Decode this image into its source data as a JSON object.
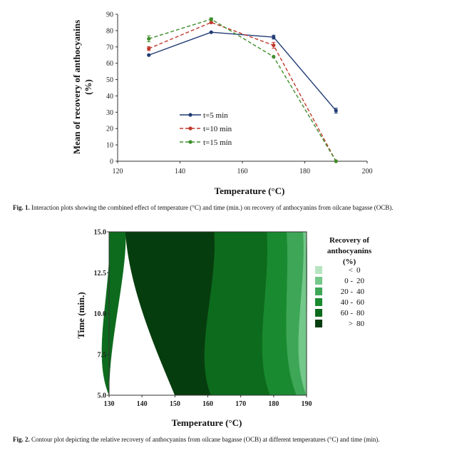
{
  "figure1": {
    "caption_label": "Fig. 1.",
    "caption_text": "Interaction plots showing the combined effect of temperature (°C) and time (min.) on recovery of anthocyanins from oilcane bagasse (OCB).",
    "chart_data": {
      "type": "line",
      "xlabel": "Temperature (°C)",
      "ylabel_line1": "Mean of recovery of anthocyanins",
      "ylabel_line2": "(%)",
      "xlim": [
        120,
        200
      ],
      "ylim": [
        0,
        90
      ],
      "x_ticks": [
        "120",
        "140",
        "160",
        "180",
        "200"
      ],
      "y_ticks": [
        "0",
        "10",
        "20",
        "30",
        "40",
        "50",
        "60",
        "70",
        "80",
        "90"
      ],
      "grid": false,
      "legend_position": "center",
      "x": [
        130,
        150,
        170,
        190
      ],
      "series": [
        {
          "name": "t=5 min",
          "color": "#1f3a73",
          "dash": "solid",
          "values": [
            65,
            79,
            76,
            31
          ],
          "errors": [
            0,
            0,
            1.2,
            1.5
          ]
        },
        {
          "name": "t=10 min",
          "color": "#c0392b",
          "dash": "dashed",
          "values": [
            69,
            85,
            71,
            0
          ],
          "errors": [
            1.2,
            0,
            1.8,
            0
          ]
        },
        {
          "name": "t=15 min",
          "color": "#3e8e2b",
          "dash": "dashed",
          "values": [
            75,
            87,
            64,
            0
          ],
          "errors": [
            1.8,
            0.8,
            0,
            0
          ]
        }
      ]
    }
  },
  "figure2": {
    "caption_label": "Fig. 2.",
    "caption_text": "Contour plot depicting the relative recovery of anthocyanins from oilcane bagasse (OCB) at different temperatures (°C) and time (min).",
    "chart_data": {
      "type": "contour",
      "xlabel": "Temperature (°C)",
      "ylabel": "Time (min.)",
      "xlim": [
        130,
        190
      ],
      "ylim": [
        5.0,
        15.0
      ],
      "x_ticks": [
        "130",
        "140",
        "150",
        "160",
        "170",
        "180",
        "190"
      ],
      "y_ticks": [
        "5.0",
        "7.5",
        "10.0",
        "12.5",
        "15.0"
      ],
      "legend_title_lines": [
        "Recovery of",
        "anthocyanins",
        "(%)"
      ],
      "legend_position": "right",
      "levels": [
        {
          "label": "<",
          "value": "0",
          "color": "#b7e4c0"
        },
        {
          "label": "0 -",
          "value": "20",
          "color": "#74c88a"
        },
        {
          "label": "20 -",
          "value": "40",
          "color": "#3ea657"
        },
        {
          "label": "40 -",
          "value": "60",
          "color": "#1a8a30"
        },
        {
          "label": "60 -",
          "value": "80",
          "color": "#0d6b1d"
        },
        {
          "label": ">",
          "value": "80",
          "color": "#063d0e"
        }
      ],
      "regions": [
        {
          "level": 4,
          "boundary_temps_top": [
            130,
            135
          ],
          "boundary_temps_bottom": [
            130,
            130
          ]
        },
        {
          "level": 5,
          "boundary_temps_top": [
            135,
            162
          ],
          "boundary_temps_bottom": [
            150,
            161
          ]
        },
        {
          "level": 4,
          "boundary_temps_top": [
            162,
            178
          ],
          "boundary_temps_bottom": [
            161,
            179
          ]
        },
        {
          "level": 3,
          "boundary_temps_top": [
            178,
            184
          ],
          "boundary_temps_bottom": [
            179,
            187
          ]
        },
        {
          "level": 2,
          "boundary_temps_top": [
            184,
            189
          ],
          "boundary_temps_bottom": [
            187,
            190
          ]
        },
        {
          "level": 1,
          "boundary_temps_top": [
            189,
            190
          ],
          "boundary_temps_bottom": [
            190,
            190
          ]
        }
      ]
    }
  }
}
